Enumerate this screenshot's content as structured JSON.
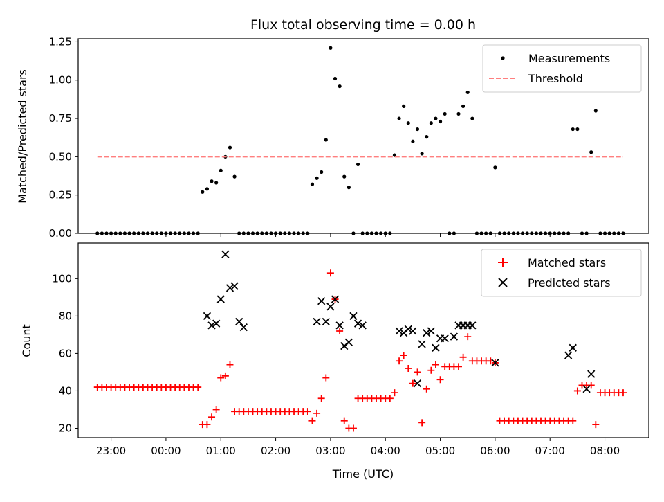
{
  "chart_data": [
    {
      "type": "scatter",
      "title": "Flux total observing time = 0.00 h",
      "xlabel": "",
      "ylabel": "Matched/Predicted stars",
      "xlim_hours": [
        -1.6,
        8.8
      ],
      "ylim": [
        0,
        1.27
      ],
      "yticks": [
        0.0,
        0.25,
        0.5,
        0.75,
        1.0,
        1.25
      ],
      "ytick_labels": [
        "0.00",
        "0.25",
        "0.50",
        "0.75",
        "1.00",
        "1.25"
      ],
      "grid": false,
      "legend_position": "top-right",
      "series": [
        {
          "name": "Measurements",
          "marker": "dot",
          "color": "#000000",
          "x": [
            "22:45",
            "22:50",
            "22:55",
            "23:00",
            "23:05",
            "23:10",
            "23:15",
            "23:20",
            "23:25",
            "23:30",
            "23:35",
            "23:40",
            "23:45",
            "23:50",
            "23:55",
            "00:00",
            "00:05",
            "00:10",
            "00:15",
            "00:20",
            "00:25",
            "00:30",
            "00:35",
            "00:40",
            "00:45",
            "00:50",
            "00:55",
            "01:00",
            "01:05",
            "01:10",
            "01:15",
            "01:20",
            "01:25",
            "01:30",
            "01:35",
            "01:40",
            "01:45",
            "01:50",
            "01:55",
            "02:00",
            "02:05",
            "02:10",
            "02:15",
            "02:20",
            "02:25",
            "02:30",
            "02:35",
            "02:40",
            "02:45",
            "02:50",
            "02:55",
            "03:00",
            "03:05",
            "03:10",
            "03:15",
            "03:20",
            "03:25",
            "03:30",
            "03:35",
            "03:40",
            "03:45",
            "03:50",
            "03:55",
            "04:00",
            "04:05",
            "04:10",
            "04:15",
            "04:20",
            "04:25",
            "04:30",
            "04:35",
            "04:40",
            "04:45",
            "04:50",
            "04:55",
            "05:00",
            "05:05",
            "05:10",
            "05:15",
            "05:20",
            "05:25",
            "05:30",
            "05:35",
            "05:40",
            "05:45",
            "05:50",
            "05:55",
            "06:00",
            "06:05",
            "06:10",
            "06:15",
            "06:20",
            "06:25",
            "06:30",
            "06:35",
            "06:40",
            "06:45",
            "06:50",
            "06:55",
            "07:00",
            "07:05",
            "07:10",
            "07:15",
            "07:20",
            "07:25",
            "07:30",
            "07:35",
            "07:40",
            "07:45",
            "07:50",
            "07:55",
            "08:00",
            "08:05",
            "08:10",
            "08:15",
            "08:20"
          ],
          "y": [
            0.0,
            0.0,
            0.0,
            0.0,
            0.0,
            0.0,
            0.0,
            0.0,
            0.0,
            0.0,
            0.0,
            0.0,
            0.0,
            0.0,
            0.0,
            0.0,
            0.0,
            0.0,
            0.0,
            0.0,
            0.0,
            0.0,
            0.0,
            0.27,
            0.29,
            0.34,
            0.33,
            0.41,
            0.5,
            0.56,
            0.37,
            0.0,
            0.0,
            0.0,
            0.0,
            0.0,
            0.0,
            0.0,
            0.0,
            0.0,
            0.0,
            0.0,
            0.0,
            0.0,
            0.0,
            0.0,
            0.0,
            0.32,
            0.36,
            0.4,
            0.61,
            1.21,
            1.01,
            0.96,
            0.37,
            0.3,
            0.0,
            0.45,
            0.0,
            0.0,
            0.0,
            0.0,
            0.0,
            0.0,
            0.0,
            0.51,
            0.75,
            0.83,
            0.72,
            0.6,
            0.68,
            0.52,
            0.63,
            0.72,
            0.75,
            0.73,
            0.78,
            0.0,
            0.0,
            0.78,
            0.83,
            0.92,
            0.75,
            0.0,
            0.0,
            0.0,
            0.0,
            0.43,
            0.0,
            0.0,
            0.0,
            0.0,
            0.0,
            0.0,
            0.0,
            0.0,
            0.0,
            0.0,
            0.0,
            0.0,
            0.0,
            0.0,
            0.0,
            0.0,
            0.68,
            0.68,
            0.0,
            0.0,
            0.53,
            0.8,
            0.0,
            0.0,
            0.0,
            0.0,
            0.0,
            0.0
          ]
        },
        {
          "name": "Threshold",
          "marker": "dashed-line",
          "color": "#ff7f7f",
          "x": [
            "22:45",
            "08:20"
          ],
          "y": [
            0.5,
            0.5
          ]
        }
      ]
    },
    {
      "type": "scatter",
      "title": "",
      "xlabel": "Time (UTC)",
      "ylabel": "Count",
      "xlim_hours": [
        -1.6,
        8.8
      ],
      "ylim": [
        15,
        119
      ],
      "yticks": [
        20,
        40,
        60,
        80,
        100
      ],
      "ytick_labels": [
        "20",
        "40",
        "60",
        "80",
        "100"
      ],
      "xticks_hours": [
        -1,
        0,
        1,
        2,
        3,
        4,
        5,
        6,
        7,
        8
      ],
      "xtick_labels": [
        "23:00",
        "00:00",
        "01:00",
        "02:00",
        "03:00",
        "04:00",
        "05:00",
        "06:00",
        "07:00",
        "08:00"
      ],
      "grid": false,
      "legend_position": "top-right",
      "series": [
        {
          "name": "Matched stars",
          "marker": "plus",
          "color": "#ff0000",
          "x": [
            "22:45",
            "22:50",
            "22:55",
            "23:00",
            "23:05",
            "23:10",
            "23:15",
            "23:20",
            "23:25",
            "23:30",
            "23:35",
            "23:40",
            "23:45",
            "23:50",
            "23:55",
            "00:00",
            "00:05",
            "00:10",
            "00:15",
            "00:20",
            "00:25",
            "00:30",
            "00:35",
            "00:40",
            "00:45",
            "00:50",
            "00:55",
            "01:00",
            "01:05",
            "01:10",
            "01:15",
            "01:20",
            "01:25",
            "01:30",
            "01:35",
            "01:40",
            "01:45",
            "01:50",
            "01:55",
            "02:00",
            "02:05",
            "02:10",
            "02:15",
            "02:20",
            "02:25",
            "02:30",
            "02:35",
            "02:40",
            "02:45",
            "02:50",
            "02:55",
            "03:00",
            "03:05",
            "03:10",
            "03:15",
            "03:20",
            "03:25",
            "03:30",
            "03:35",
            "03:40",
            "03:45",
            "03:50",
            "03:55",
            "04:00",
            "04:05",
            "04:10",
            "04:15",
            "04:20",
            "04:25",
            "04:30",
            "04:35",
            "04:40",
            "04:45",
            "04:50",
            "04:55",
            "05:00",
            "05:05",
            "05:10",
            "05:15",
            "05:20",
            "05:25",
            "05:30",
            "05:35",
            "05:40",
            "05:45",
            "05:50",
            "05:55",
            "06:00",
            "06:05",
            "06:10",
            "06:15",
            "06:20",
            "06:25",
            "06:30",
            "06:35",
            "06:40",
            "06:45",
            "06:50",
            "06:55",
            "07:00",
            "07:05",
            "07:10",
            "07:15",
            "07:20",
            "07:25",
            "07:30",
            "07:35",
            "07:40",
            "07:45",
            "07:50",
            "07:55",
            "08:00",
            "08:05",
            "08:10",
            "08:15",
            "08:20"
          ],
          "y": [
            42,
            42,
            42,
            42,
            42,
            42,
            42,
            42,
            42,
            42,
            42,
            42,
            42,
            42,
            42,
            42,
            42,
            42,
            42,
            42,
            42,
            42,
            42,
            22,
            22,
            26,
            30,
            47,
            48,
            54,
            29,
            29,
            29,
            29,
            29,
            29,
            29,
            29,
            29,
            29,
            29,
            29,
            29,
            29,
            29,
            29,
            29,
            24,
            28,
            36,
            47,
            103,
            89,
            72,
            24,
            20,
            20,
            36,
            36,
            36,
            36,
            36,
            36,
            36,
            36,
            39,
            56,
            59,
            52,
            44,
            50,
            23,
            41,
            51,
            54,
            46,
            53,
            53,
            53,
            53,
            58,
            69,
            56,
            56,
            56,
            56,
            56,
            55,
            24,
            24,
            24,
            24,
            24,
            24,
            24,
            24,
            24,
            24,
            24,
            24,
            24,
            24,
            24,
            24,
            24,
            40,
            43,
            43,
            43,
            22,
            39,
            39,
            39,
            39,
            39,
            39
          ]
        },
        {
          "name": "Predicted stars",
          "marker": "x",
          "color": "#000000",
          "x": [
            "00:45",
            "00:50",
            "00:55",
            "01:00",
            "01:05",
            "01:10",
            "01:15",
            "01:20",
            "01:25",
            "02:45",
            "02:50",
            "02:55",
            "03:00",
            "03:05",
            "03:10",
            "03:15",
            "03:20",
            "03:25",
            "03:30",
            "03:35",
            "04:15",
            "04:20",
            "04:25",
            "04:30",
            "04:35",
            "04:40",
            "04:45",
            "04:50",
            "04:55",
            "05:00",
            "05:05",
            "05:15",
            "05:20",
            "05:25",
            "05:30",
            "05:35",
            "06:00",
            "07:20",
            "07:25",
            "07:40",
            "07:45"
          ],
          "y": [
            80,
            75,
            76,
            89,
            113,
            95,
            96,
            77,
            74,
            77,
            88,
            77,
            85,
            89,
            75,
            64,
            66,
            80,
            76,
            75,
            72,
            71,
            73,
            72,
            44,
            65,
            71,
            72,
            63,
            68,
            68,
            69,
            75,
            75,
            75,
            75,
            55,
            59,
            63,
            41,
            49
          ]
        }
      ]
    }
  ]
}
